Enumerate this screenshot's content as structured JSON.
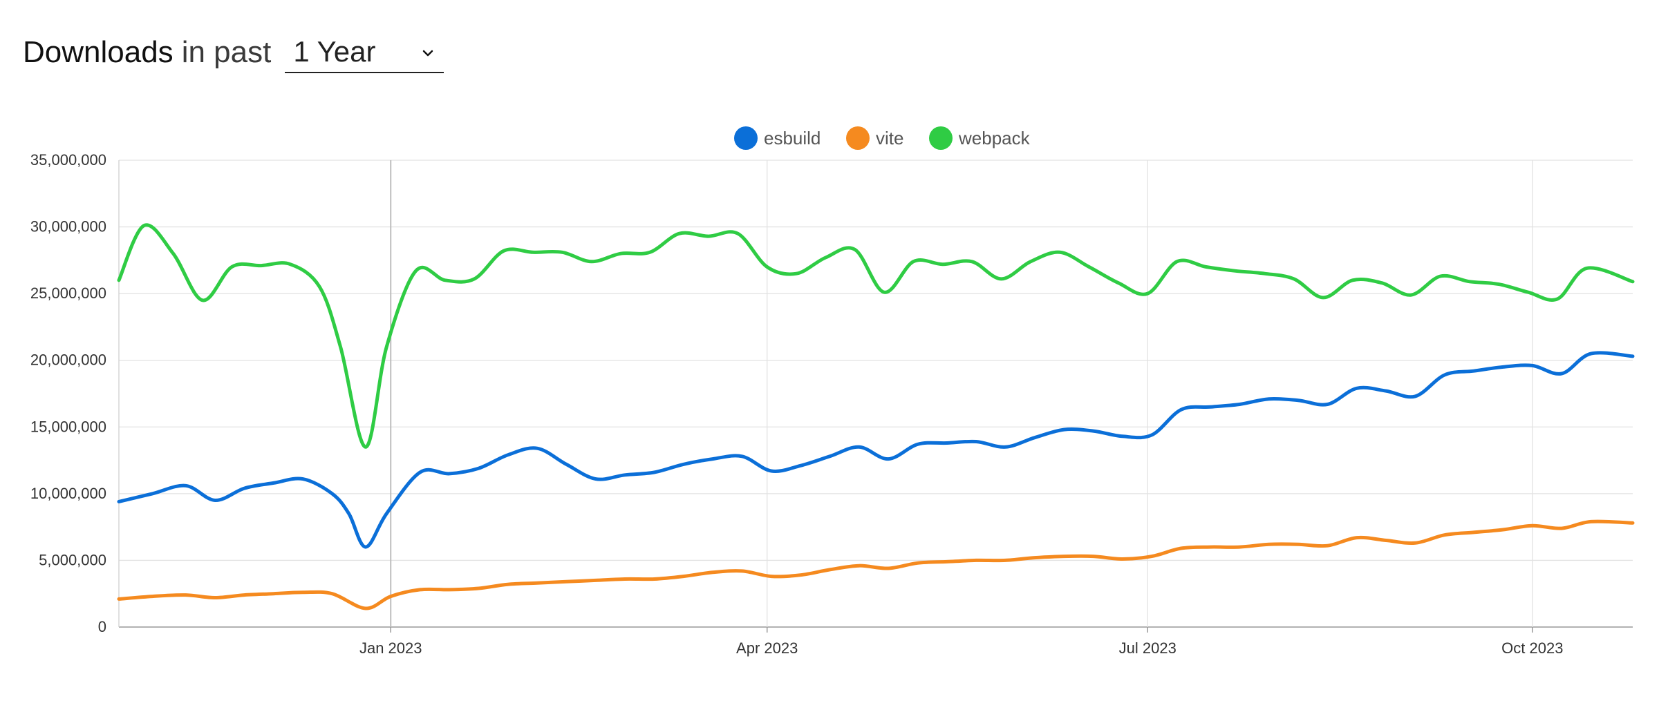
{
  "header": {
    "title_strong": "Downloads",
    "title_light": "in past",
    "period_selected": "1 Year"
  },
  "chart_data": {
    "type": "line",
    "ylim": [
      0,
      35000000
    ],
    "y_ticks": [
      0,
      5000000,
      10000000,
      15000000,
      20000000,
      25000000,
      30000000,
      35000000
    ],
    "y_tick_labels": [
      "0",
      "5,000,000",
      "10,000,000",
      "15,000,000",
      "20,000,000",
      "25,000,000",
      "30,000,000",
      "35,000,000"
    ],
    "x_ticks": [
      "2023-01-01",
      "2023-04-01",
      "2023-07-01",
      "2023-10-01"
    ],
    "x_tick_labels": [
      "Jan 2023",
      "Apr 2023",
      "Jul 2023",
      "Oct 2023"
    ],
    "xlim": [
      "2022-10-28",
      "2023-10-25"
    ],
    "grid": true,
    "legend": "top-center",
    "series": [
      {
        "name": "esbuild",
        "color": "#0b6fd8",
        "points": [
          [
            "2022-10-28",
            9400000
          ],
          [
            "2022-11-05",
            10000000
          ],
          [
            "2022-11-13",
            10600000
          ],
          [
            "2022-11-20",
            9500000
          ],
          [
            "2022-11-27",
            10400000
          ],
          [
            "2022-12-04",
            10800000
          ],
          [
            "2022-12-11",
            11100000
          ],
          [
            "2022-12-18",
            10000000
          ],
          [
            "2022-12-22",
            8500000
          ],
          [
            "2022-12-26",
            6000000
          ],
          [
            "2022-12-31",
            8500000
          ],
          [
            "2023-01-08",
            11600000
          ],
          [
            "2023-01-15",
            11500000
          ],
          [
            "2023-01-22",
            11900000
          ],
          [
            "2023-01-29",
            12900000
          ],
          [
            "2023-02-05",
            13400000
          ],
          [
            "2023-02-12",
            12200000
          ],
          [
            "2023-02-19",
            11100000
          ],
          [
            "2023-02-26",
            11400000
          ],
          [
            "2023-03-05",
            11600000
          ],
          [
            "2023-03-12",
            12200000
          ],
          [
            "2023-03-19",
            12600000
          ],
          [
            "2023-03-26",
            12800000
          ],
          [
            "2023-04-02",
            11700000
          ],
          [
            "2023-04-09",
            12100000
          ],
          [
            "2023-04-16",
            12800000
          ],
          [
            "2023-04-23",
            13500000
          ],
          [
            "2023-04-30",
            12600000
          ],
          [
            "2023-05-07",
            13700000
          ],
          [
            "2023-05-14",
            13800000
          ],
          [
            "2023-05-21",
            13900000
          ],
          [
            "2023-05-28",
            13500000
          ],
          [
            "2023-06-04",
            14200000
          ],
          [
            "2023-06-11",
            14800000
          ],
          [
            "2023-06-18",
            14700000
          ],
          [
            "2023-06-25",
            14300000
          ],
          [
            "2023-07-02",
            14400000
          ],
          [
            "2023-07-09",
            16300000
          ],
          [
            "2023-07-16",
            16500000
          ],
          [
            "2023-07-23",
            16700000
          ],
          [
            "2023-07-30",
            17100000
          ],
          [
            "2023-08-06",
            17000000
          ],
          [
            "2023-08-13",
            16700000
          ],
          [
            "2023-08-20",
            17900000
          ],
          [
            "2023-08-27",
            17700000
          ],
          [
            "2023-09-03",
            17300000
          ],
          [
            "2023-09-10",
            18900000
          ],
          [
            "2023-09-17",
            19200000
          ],
          [
            "2023-09-24",
            19500000
          ],
          [
            "2023-10-01",
            19600000
          ],
          [
            "2023-10-08",
            19000000
          ],
          [
            "2023-10-15",
            20500000
          ],
          [
            "2023-10-25",
            20300000
          ]
        ]
      },
      {
        "name": "vite",
        "color": "#f58a1f",
        "points": [
          [
            "2022-10-28",
            2100000
          ],
          [
            "2022-11-05",
            2300000
          ],
          [
            "2022-11-13",
            2400000
          ],
          [
            "2022-11-20",
            2200000
          ],
          [
            "2022-11-27",
            2400000
          ],
          [
            "2022-12-04",
            2500000
          ],
          [
            "2022-12-11",
            2600000
          ],
          [
            "2022-12-18",
            2500000
          ],
          [
            "2022-12-26",
            1400000
          ],
          [
            "2023-01-01",
            2300000
          ],
          [
            "2023-01-08",
            2800000
          ],
          [
            "2023-01-15",
            2800000
          ],
          [
            "2023-01-22",
            2900000
          ],
          [
            "2023-01-29",
            3200000
          ],
          [
            "2023-02-05",
            3300000
          ],
          [
            "2023-02-12",
            3400000
          ],
          [
            "2023-02-19",
            3500000
          ],
          [
            "2023-02-26",
            3600000
          ],
          [
            "2023-03-05",
            3600000
          ],
          [
            "2023-03-12",
            3800000
          ],
          [
            "2023-03-19",
            4100000
          ],
          [
            "2023-03-26",
            4200000
          ],
          [
            "2023-04-02",
            3800000
          ],
          [
            "2023-04-09",
            3900000
          ],
          [
            "2023-04-16",
            4300000
          ],
          [
            "2023-04-23",
            4600000
          ],
          [
            "2023-04-30",
            4400000
          ],
          [
            "2023-05-07",
            4800000
          ],
          [
            "2023-05-14",
            4900000
          ],
          [
            "2023-05-21",
            5000000
          ],
          [
            "2023-05-28",
            5000000
          ],
          [
            "2023-06-04",
            5200000
          ],
          [
            "2023-06-11",
            5300000
          ],
          [
            "2023-06-18",
            5300000
          ],
          [
            "2023-06-25",
            5100000
          ],
          [
            "2023-07-02",
            5300000
          ],
          [
            "2023-07-09",
            5900000
          ],
          [
            "2023-07-16",
            6000000
          ],
          [
            "2023-07-23",
            6000000
          ],
          [
            "2023-07-30",
            6200000
          ],
          [
            "2023-08-06",
            6200000
          ],
          [
            "2023-08-13",
            6100000
          ],
          [
            "2023-08-20",
            6700000
          ],
          [
            "2023-08-27",
            6500000
          ],
          [
            "2023-09-03",
            6300000
          ],
          [
            "2023-09-10",
            6900000
          ],
          [
            "2023-09-17",
            7100000
          ],
          [
            "2023-09-24",
            7300000
          ],
          [
            "2023-10-01",
            7600000
          ],
          [
            "2023-10-08",
            7400000
          ],
          [
            "2023-10-15",
            7900000
          ],
          [
            "2023-10-25",
            7800000
          ]
        ]
      },
      {
        "name": "webpack",
        "color": "#2fcc44",
        "points": [
          [
            "2022-10-28",
            26000000
          ],
          [
            "2022-11-03",
            30100000
          ],
          [
            "2022-11-10",
            28000000
          ],
          [
            "2022-11-17",
            24500000
          ],
          [
            "2022-11-24",
            27000000
          ],
          [
            "2022-12-01",
            27100000
          ],
          [
            "2022-12-08",
            27200000
          ],
          [
            "2022-12-15",
            25500000
          ],
          [
            "2022-12-20",
            21000000
          ],
          [
            "2022-12-26",
            13500000
          ],
          [
            "2022-12-31",
            21000000
          ],
          [
            "2023-01-07",
            26700000
          ],
          [
            "2023-01-14",
            26000000
          ],
          [
            "2023-01-21",
            26100000
          ],
          [
            "2023-01-28",
            28200000
          ],
          [
            "2023-02-04",
            28100000
          ],
          [
            "2023-02-11",
            28100000
          ],
          [
            "2023-02-18",
            27400000
          ],
          [
            "2023-02-25",
            28000000
          ],
          [
            "2023-03-04",
            28100000
          ],
          [
            "2023-03-11",
            29500000
          ],
          [
            "2023-03-18",
            29300000
          ],
          [
            "2023-03-25",
            29500000
          ],
          [
            "2023-04-01",
            27000000
          ],
          [
            "2023-04-08",
            26500000
          ],
          [
            "2023-04-15",
            27700000
          ],
          [
            "2023-04-22",
            28300000
          ],
          [
            "2023-04-29",
            25100000
          ],
          [
            "2023-05-06",
            27400000
          ],
          [
            "2023-05-13",
            27200000
          ],
          [
            "2023-05-20",
            27400000
          ],
          [
            "2023-05-27",
            26100000
          ],
          [
            "2023-06-03",
            27400000
          ],
          [
            "2023-06-10",
            28100000
          ],
          [
            "2023-06-17",
            27000000
          ],
          [
            "2023-06-24",
            25800000
          ],
          [
            "2023-07-01",
            25000000
          ],
          [
            "2023-07-08",
            27400000
          ],
          [
            "2023-07-15",
            27000000
          ],
          [
            "2023-07-22",
            26700000
          ],
          [
            "2023-07-29",
            26500000
          ],
          [
            "2023-08-05",
            26100000
          ],
          [
            "2023-08-12",
            24700000
          ],
          [
            "2023-08-19",
            26000000
          ],
          [
            "2023-08-26",
            25800000
          ],
          [
            "2023-09-02",
            24900000
          ],
          [
            "2023-09-09",
            26300000
          ],
          [
            "2023-09-16",
            25900000
          ],
          [
            "2023-09-23",
            25700000
          ],
          [
            "2023-09-30",
            25100000
          ],
          [
            "2023-10-07",
            24600000
          ],
          [
            "2023-10-14",
            26900000
          ],
          [
            "2023-10-25",
            25900000
          ]
        ]
      }
    ]
  }
}
